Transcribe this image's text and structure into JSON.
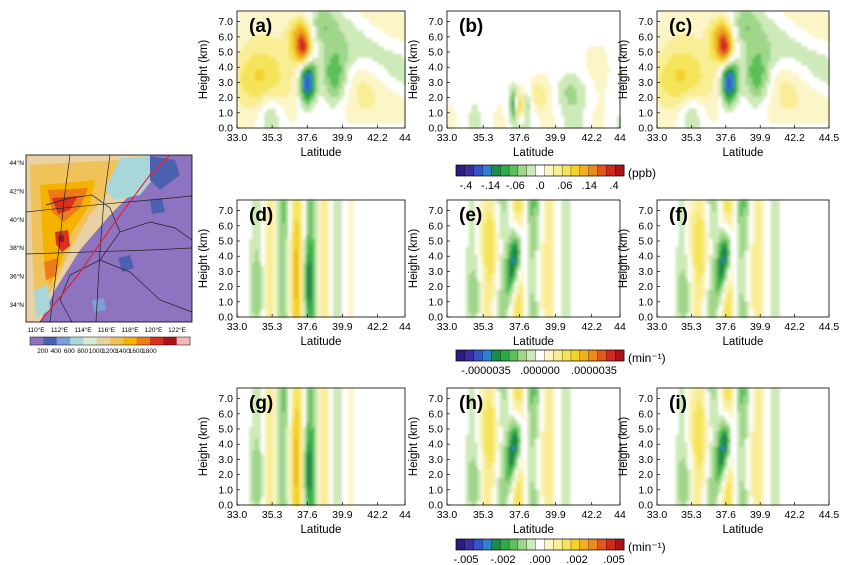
{
  "chart_data": {
    "type": "heatmap",
    "map": {
      "lon_ticks": [
        "110°E",
        "112°E",
        "114°E",
        "116°E",
        "118°E",
        "120°E",
        "122°E"
      ],
      "lat_ticks": [
        "44°N",
        "42°N",
        "40°N",
        "38°N",
        "36°N",
        "34°N"
      ],
      "colorbar_ticks": [
        "200",
        "400",
        "600",
        "800",
        "1000",
        "1200",
        "1400",
        "1600",
        "1800"
      ],
      "colorbar_colors": [
        "#8e73c0",
        "#4b61b0",
        "#7d9fd6",
        "#a9d7d9",
        "#d9ecd1",
        "#e8d2a4",
        "#f0c25a",
        "#f5b300",
        "#ef7a1a",
        "#d8311e",
        "#a8141a",
        "#f2b8b8"
      ]
    },
    "rows": [
      {
        "colorbar_ticks": [
          "-.4",
          "-.14",
          "-.06",
          ".0",
          ".06",
          ".14",
          ".4"
        ],
        "unit": "(ppb)"
      },
      {
        "colorbar_ticks": [
          "-.0000035",
          ".000000",
          ".0000035"
        ],
        "unit": "(min⁻¹)"
      },
      {
        "colorbar_ticks": [
          "-.005",
          "-.002",
          ".000",
          ".002",
          ".005"
        ],
        "unit": "(min⁻¹)"
      }
    ],
    "y_ticks": [
      "0.0",
      "1.0",
      "2.0",
      "3.0",
      "4.0",
      "5.0",
      "6.0",
      "7.0"
    ],
    "ylabel": "Height (km)",
    "xlabel": "Latitude",
    "ylim": [
      0,
      7.7
    ],
    "xlim": [
      33.0,
      44.5
    ],
    "panels": [
      {
        "label": "(a)",
        "x_ticks": [
          "33.0",
          "35.3",
          "37.6",
          "39.9",
          "42.2",
          "44"
        ],
        "row": 0,
        "col": 0
      },
      {
        "label": "(b)",
        "x_ticks": [
          "33.0",
          "35.3",
          "37.6",
          "39.9",
          "42.2",
          "44"
        ],
        "row": 0,
        "col": 1
      },
      {
        "label": "(c)",
        "x_ticks": [
          "33.0",
          "35.3",
          "37.6",
          "39.9",
          "42.2",
          "44.5"
        ],
        "row": 0,
        "col": 2
      },
      {
        "label": "(d)",
        "x_ticks": [
          "33.0",
          "35.3",
          "37.6",
          "39.9",
          "42.2",
          "44"
        ],
        "row": 1,
        "col": 0
      },
      {
        "label": "(e)",
        "x_ticks": [
          "33.0",
          "35.3",
          "37.6",
          "39.9",
          "42.2",
          "44"
        ],
        "row": 1,
        "col": 1
      },
      {
        "label": "(f)",
        "x_ticks": [
          "33.0",
          "35.3",
          "37.6",
          "39.9",
          "42.2",
          "44.5"
        ],
        "row": 1,
        "col": 2
      },
      {
        "label": "(g)",
        "x_ticks": [
          "33.0",
          "35.3",
          "37.6",
          "39.9",
          "42.2",
          "44"
        ],
        "row": 2,
        "col": 0
      },
      {
        "label": "(h)",
        "x_ticks": [
          "33.0",
          "35.3",
          "37.6",
          "39.9",
          "42.2",
          "44"
        ],
        "row": 2,
        "col": 1
      },
      {
        "label": "(i)",
        "x_ticks": [
          "33.0",
          "35.3",
          "37.6",
          "39.9",
          "42.2",
          "44.5"
        ],
        "row": 2,
        "col": 2
      }
    ],
    "palette": [
      "#2b1d7e",
      "#3a2ea0",
      "#3552c8",
      "#2f7fd0",
      "#1c8a4a",
      "#2faa4a",
      "#5cc05a",
      "#9fd68a",
      "#cdeab8",
      "#ffffff",
      "#fbf5c7",
      "#f9ee95",
      "#f5e45a",
      "#f3d22a",
      "#f0b020",
      "#ec8a1e",
      "#e4561c",
      "#d02a1e",
      "#a8141a"
    ],
    "legend": "below each row",
    "grid": false
  }
}
